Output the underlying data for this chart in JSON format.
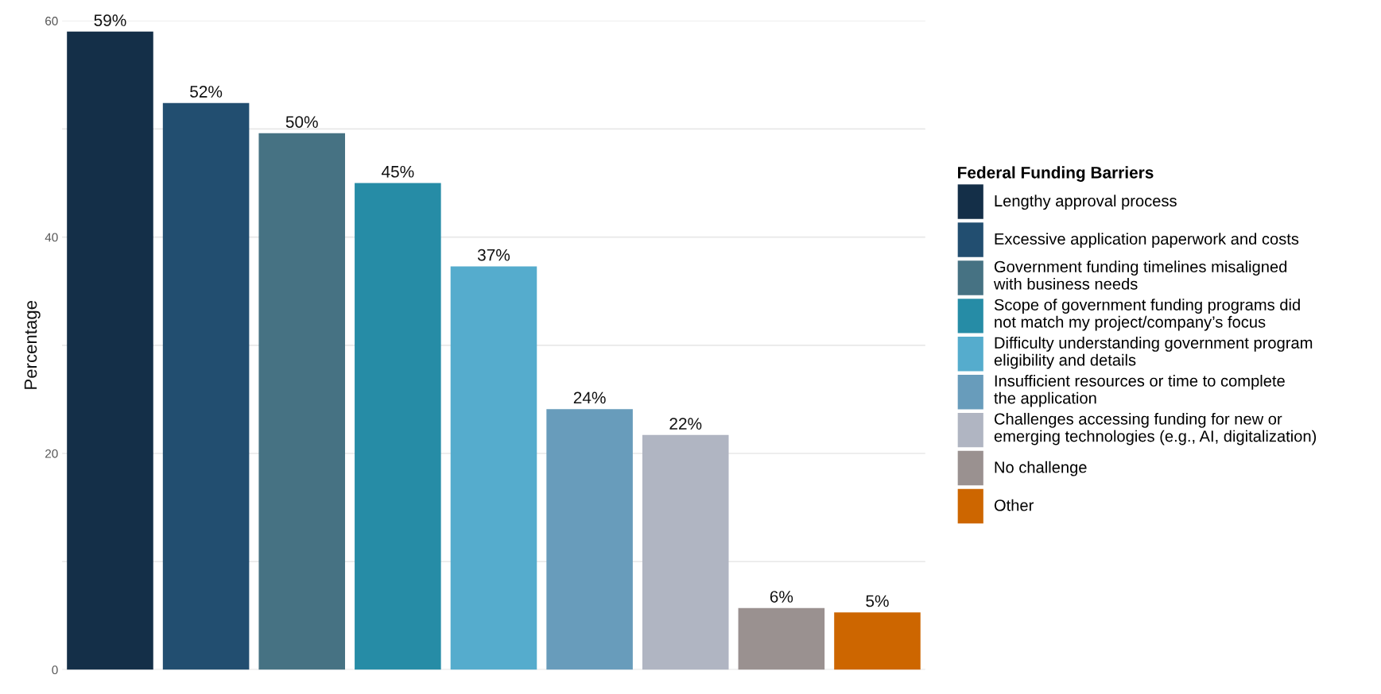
{
  "chart_data": {
    "type": "bar",
    "ylabel": "Percentage",
    "legend_title": "Federal Funding Barriers",
    "categories": [
      null,
      null,
      null,
      null,
      null,
      null,
      null,
      null,
      null
    ],
    "series": [
      {
        "name": "Lengthy approval process",
        "color": "#142f48",
        "values": [
          59,
          null,
          null,
          null,
          null,
          null,
          null,
          null,
          null
        ],
        "value_labels": [
          "59%",
          null,
          null,
          null,
          null,
          null,
          null,
          null,
          null
        ]
      },
      {
        "name": "Excessive application paperwork and costs",
        "color": "#224e70",
        "values": [
          null,
          52.4,
          null,
          null,
          null,
          null,
          null,
          null,
          null
        ],
        "value_labels": [
          null,
          "52%",
          null,
          null,
          null,
          null,
          null,
          null,
          null
        ]
      },
      {
        "name": "Government funding timelines misaligned\nwith business needs",
        "color": "#467283",
        "values": [
          null,
          null,
          49.6,
          null,
          null,
          null,
          null,
          null,
          null
        ],
        "value_labels": [
          null,
          null,
          "50%",
          null,
          null,
          null,
          null,
          null,
          null
        ]
      },
      {
        "name": "Scope of government funding programs did\nnot match my project/company’s focus",
        "color": "#268ca6",
        "values": [
          null,
          null,
          null,
          45,
          null,
          null,
          null,
          null,
          null
        ],
        "value_labels": [
          null,
          null,
          null,
          "45%",
          null,
          null,
          null,
          null,
          null
        ]
      },
      {
        "name": "Difficulty understanding government program\neligibility and details",
        "color": "#55accd",
        "values": [
          null,
          null,
          null,
          null,
          37.3,
          null,
          null,
          null,
          null
        ],
        "value_labels": [
          null,
          null,
          null,
          null,
          "37%",
          null,
          null,
          null,
          null
        ]
      },
      {
        "name": "Insufficient resources or time to complete\nthe application",
        "color": "#689cbb",
        "values": [
          null,
          null,
          null,
          null,
          null,
          24.1,
          null,
          null,
          null
        ],
        "value_labels": [
          null,
          null,
          null,
          null,
          null,
          "24%",
          null,
          null,
          null
        ]
      },
      {
        "name": "Challenges accessing funding for new or\nemerging technologies (e.g., AI, digitalization)",
        "color": "#b0b5c2",
        "values": [
          null,
          null,
          null,
          null,
          null,
          null,
          21.7,
          null,
          null
        ],
        "value_labels": [
          null,
          null,
          null,
          null,
          null,
          null,
          "22%",
          null,
          null
        ]
      },
      {
        "name": "No challenge",
        "color": "#9a9190",
        "values": [
          null,
          null,
          null,
          null,
          null,
          null,
          null,
          5.7,
          null
        ],
        "value_labels": [
          null,
          null,
          null,
          null,
          null,
          null,
          null,
          "6%",
          null
        ]
      },
      {
        "name": "Other",
        "color": "#cd6600",
        "values": [
          null,
          null,
          null,
          null,
          null,
          null,
          null,
          null,
          5.3
        ],
        "value_labels": [
          null,
          null,
          null,
          null,
          null,
          null,
          null,
          null,
          "5%"
        ]
      }
    ],
    "ylim": [
      0,
      60
    ],
    "yticks": [
      0,
      {
        "value": 10,
        "label": null
      },
      20,
      {
        "value": 30,
        "label": null
      },
      40,
      {
        "value": 50,
        "label": null
      },
      60
    ],
    "grid": "y",
    "legend": "right"
  }
}
